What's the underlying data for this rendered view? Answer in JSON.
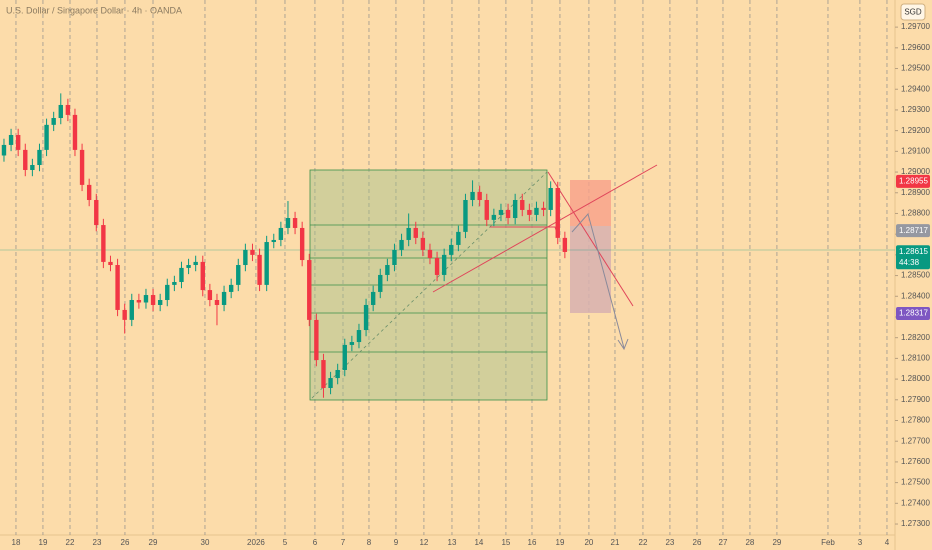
{
  "chart_data": {
    "type": "candlestick",
    "title": "U.S. Dollar / Singapore Dollar · 4h · OANDA",
    "currency": "SGD",
    "up_color": "#089981",
    "down_color": "#f23645",
    "xlim": [
      -0.56,
      125.5
    ],
    "ylim": [
      1.27247,
      1.29831
    ],
    "grid": true,
    "xticks": [
      {
        "value": 1.69,
        "label": "18"
      },
      {
        "value": 5.49,
        "label": "19"
      },
      {
        "value": 9.3,
        "label": "22"
      },
      {
        "value": 13.1,
        "label": "23"
      },
      {
        "value": 17.04,
        "label": "26"
      },
      {
        "value": 20.99,
        "label": "29"
      },
      {
        "value": 28.31,
        "label": "30"
      },
      {
        "value": 35.49,
        "label": "2026"
      },
      {
        "value": 39.58,
        "label": "5"
      },
      {
        "value": 43.8,
        "label": "6"
      },
      {
        "value": 47.75,
        "label": "7"
      },
      {
        "value": 51.41,
        "label": "8"
      },
      {
        "value": 55.21,
        "label": "9"
      },
      {
        "value": 59.15,
        "label": "12"
      },
      {
        "value": 63.1,
        "label": "13"
      },
      {
        "value": 66.9,
        "label": "14"
      },
      {
        "value": 70.7,
        "label": "15"
      },
      {
        "value": 74.37,
        "label": "16"
      },
      {
        "value": 78.31,
        "label": "19"
      },
      {
        "value": 82.39,
        "label": "20"
      },
      {
        "value": 86.06,
        "label": "21"
      },
      {
        "value": 90.0,
        "label": "22"
      },
      {
        "value": 93.8,
        "label": "23"
      },
      {
        "value": 97.61,
        "label": "26"
      },
      {
        "value": 101.27,
        "label": "27"
      },
      {
        "value": 105.07,
        "label": "28"
      },
      {
        "value": 108.87,
        "label": "29"
      },
      {
        "value": 116.06,
        "label": "Feb"
      },
      {
        "value": 120.56,
        "label": "3"
      },
      {
        "value": 124.37,
        "label": "4"
      }
    ],
    "yticks": [
      {
        "value": 1.297,
        "label": "1.29700"
      },
      {
        "value": 1.296,
        "label": "1.29600"
      },
      {
        "value": 1.295,
        "label": "1.29500"
      },
      {
        "value": 1.294,
        "label": "1.29400"
      },
      {
        "value": 1.293,
        "label": "1.29300"
      },
      {
        "value": 1.292,
        "label": "1.29200"
      },
      {
        "value": 1.291,
        "label": "1.29100"
      },
      {
        "value": 1.29,
        "label": "1.29000"
      },
      {
        "value": 1.289,
        "label": "1.28900"
      },
      {
        "value": 1.288,
        "label": "1.28800"
      },
      {
        "value": 1.287,
        "label": "1.28700"
      },
      {
        "value": 1.286,
        "label": "1.28600"
      },
      {
        "value": 1.285,
        "label": "1.28500"
      },
      {
        "value": 1.284,
        "label": "1.28400"
      },
      {
        "value": 1.283,
        "label": "1.28300"
      },
      {
        "value": 1.282,
        "label": "1.28200"
      },
      {
        "value": 1.281,
        "label": "1.28100"
      },
      {
        "value": 1.28,
        "label": "1.28000"
      },
      {
        "value": 1.279,
        "label": "1.27900"
      },
      {
        "value": 1.278,
        "label": "1.27800"
      },
      {
        "value": 1.277,
        "label": "1.27700"
      },
      {
        "value": 1.276,
        "label": "1.27600"
      },
      {
        "value": 1.275,
        "label": "1.27500"
      },
      {
        "value": 1.274,
        "label": "1.27400"
      },
      {
        "value": 1.273,
        "label": "1.27300"
      }
    ],
    "price_labels": [
      {
        "value": 1.28955,
        "color": "#f23645"
      },
      {
        "value": 1.28717,
        "color": "#9598a1"
      },
      {
        "value": 1.28615,
        "color": "#089981",
        "countdown": "44:38"
      },
      {
        "value": 1.28317,
        "color": "#7e57c2"
      }
    ],
    "open": [
      1.2908,
      1.29131,
      1.29179,
      1.29107,
      1.2901,
      1.29034,
      1.29107,
      1.29228,
      1.29261,
      1.29324,
      1.29276,
      1.29107,
      1.28938,
      1.28865,
      1.28744,
      1.28566,
      1.28551,
      1.28334,
      1.28286,
      1.28382,
      1.2837,
      1.28406,
      1.28358,
      1.28382,
      1.28455,
      1.28469,
      1.28537,
      1.28551,
      1.28566,
      1.2843,
      1.28382,
      1.28358,
      1.28421,
      1.28455,
      1.28551,
      1.28624,
      1.286,
      1.28455,
      1.28662,
      1.28672,
      1.2873,
      1.28778,
      1.2873,
      1.28575,
      1.28286,
      1.28092,
      1.27957,
      1.28005,
      1.28044,
      1.28165,
      1.28179,
      1.28237,
      1.28358,
      1.28421,
      1.28503,
      1.28551,
      1.28624,
      1.28672,
      1.2873,
      1.28682,
      1.28624,
      1.28585,
      1.28503,
      1.286,
      1.28648,
      1.28711,
      1.28865,
      1.28904,
      1.28865,
      1.28769,
      1.28793,
      1.28817,
      1.28778,
      1.28865,
      1.28817,
      1.28793,
      1.28827,
      1.28817,
      1.28923,
      1.28682
    ],
    "high": [
      1.29161,
      1.29209,
      1.29209,
      1.29137,
      1.29064,
      1.29137,
      1.29258,
      1.29291,
      1.2938,
      1.29354,
      1.29306,
      1.29137,
      1.28968,
      1.28895,
      1.28774,
      1.28596,
      1.28581,
      1.28364,
      1.28412,
      1.28412,
      1.28436,
      1.28436,
      1.28412,
      1.28485,
      1.28499,
      1.28567,
      1.28581,
      1.28596,
      1.28596,
      1.2846,
      1.28412,
      1.28451,
      1.28485,
      1.28581,
      1.28654,
      1.28654,
      1.2863,
      1.28692,
      1.28702,
      1.2876,
      1.2886,
      1.28808,
      1.2876,
      1.28605,
      1.28316,
      1.28122,
      1.28035,
      1.28074,
      1.28195,
      1.28209,
      1.28267,
      1.28388,
      1.28451,
      1.28533,
      1.28581,
      1.28654,
      1.28702,
      1.288,
      1.2876,
      1.28712,
      1.28654,
      1.28615,
      1.2863,
      1.28678,
      1.28741,
      1.28895,
      1.2896,
      1.28934,
      1.28895,
      1.28823,
      1.28847,
      1.28847,
      1.28895,
      1.28895,
      1.28847,
      1.28857,
      1.28857,
      1.28955,
      1.28953,
      1.28712
    ],
    "low": [
      1.2905,
      1.29101,
      1.29077,
      1.2898,
      1.2898,
      1.29004,
      1.29077,
      1.29198,
      1.29231,
      1.29246,
      1.29077,
      1.28908,
      1.28835,
      1.28714,
      1.28536,
      1.28521,
      1.28304,
      1.2822,
      1.28256,
      1.2834,
      1.2834,
      1.28328,
      1.28328,
      1.28352,
      1.28425,
      1.28439,
      1.28507,
      1.28521,
      1.284,
      1.28352,
      1.2826,
      1.28328,
      1.28391,
      1.28425,
      1.28521,
      1.2857,
      1.28425,
      1.28425,
      1.28632,
      1.28642,
      1.287,
      1.287,
      1.28545,
      1.28256,
      1.28062,
      1.2791,
      1.27927,
      1.27975,
      1.28014,
      1.28135,
      1.28149,
      1.28207,
      1.28328,
      1.28391,
      1.28473,
      1.28521,
      1.28594,
      1.28642,
      1.28652,
      1.28594,
      1.28555,
      1.28473,
      1.28473,
      1.2857,
      1.28618,
      1.28681,
      1.28835,
      1.28835,
      1.28739,
      1.28739,
      1.28763,
      1.28748,
      1.28748,
      1.28787,
      1.28763,
      1.28763,
      1.28787,
      1.28787,
      1.28652,
      1.28584
    ],
    "close": [
      1.29131,
      1.29179,
      1.29107,
      1.2901,
      1.29034,
      1.29107,
      1.29228,
      1.29261,
      1.29324,
      1.29276,
      1.29107,
      1.28938,
      1.28865,
      1.28744,
      1.28566,
      1.28551,
      1.28334,
      1.28286,
      1.28382,
      1.2837,
      1.28406,
      1.28358,
      1.28382,
      1.28455,
      1.28469,
      1.28537,
      1.28551,
      1.28566,
      1.2843,
      1.28382,
      1.28358,
      1.28421,
      1.28455,
      1.28551,
      1.28624,
      1.286,
      1.28455,
      1.28662,
      1.28672,
      1.2873,
      1.28778,
      1.2873,
      1.28575,
      1.28286,
      1.28092,
      1.27957,
      1.28005,
      1.28044,
      1.28165,
      1.28179,
      1.28237,
      1.28358,
      1.28421,
      1.28503,
      1.28551,
      1.28624,
      1.28672,
      1.2873,
      1.28682,
      1.28624,
      1.28585,
      1.28503,
      1.286,
      1.28648,
      1.28711,
      1.28865,
      1.28904,
      1.28865,
      1.28769,
      1.28793,
      1.28817,
      1.28778,
      1.28865,
      1.28817,
      1.28793,
      1.28827,
      1.28817,
      1.28923,
      1.28682,
      1.28614
    ]
  }
}
